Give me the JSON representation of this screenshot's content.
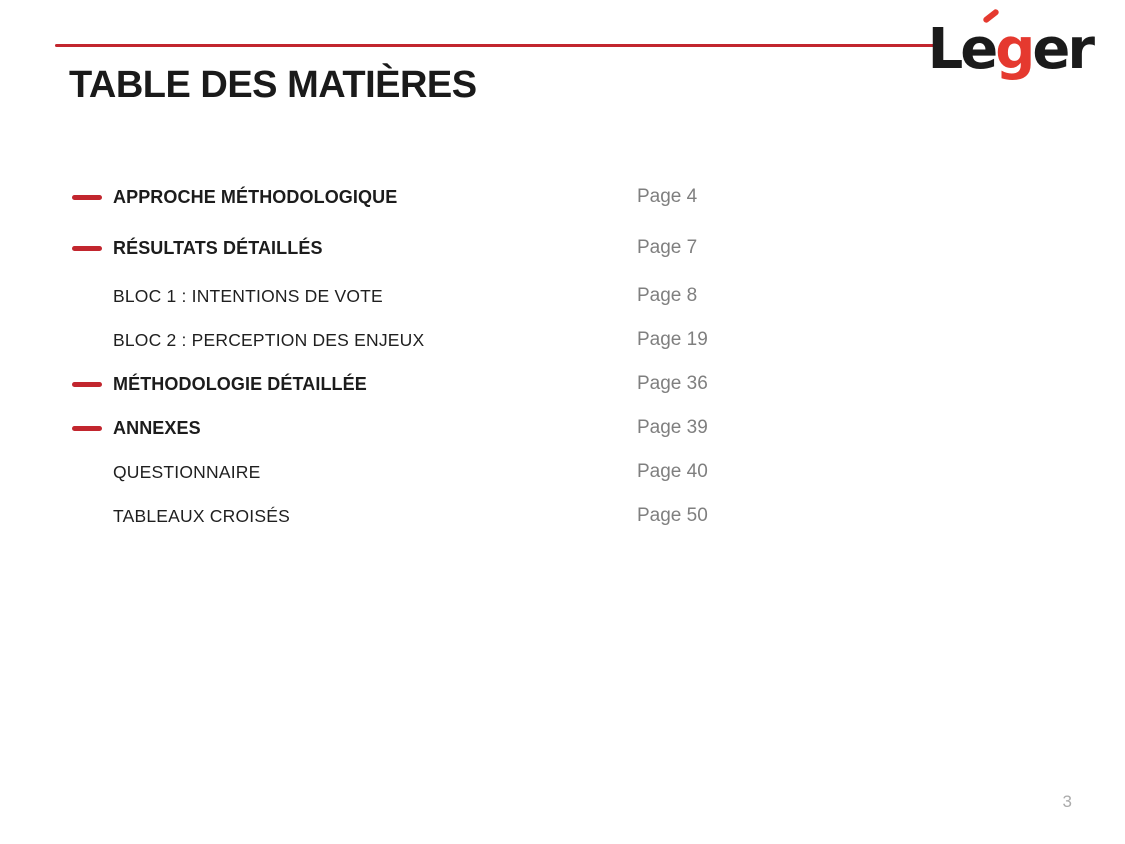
{
  "title": "TABLE DES MATIÈRES",
  "logo": {
    "alt": "Léger",
    "le": "Le",
    "g": "g",
    "er": "er"
  },
  "toc": {
    "items": [
      {
        "label": "APPROCHE MÉTHODOLOGIQUE",
        "page": "Page 4",
        "level": "main"
      },
      {
        "label": "RÉSULTATS DÉTAILLÉS",
        "page": "Page 7",
        "level": "main"
      },
      {
        "label": "BLOC 1 : INTENTIONS DE VOTE",
        "page": "Page 8",
        "level": "sub"
      },
      {
        "label": "BLOC 2 : PERCEPTION DES ENJEUX",
        "page": "Page 19",
        "level": "sub"
      },
      {
        "label": "MÉTHODOLOGIE DÉTAILLÉE",
        "page": "Page 36",
        "level": "main"
      },
      {
        "label": "ANNEXES",
        "page": "Page 39",
        "level": "main"
      },
      {
        "label": "QUESTIONNAIRE",
        "page": "Page 40",
        "level": "sub"
      },
      {
        "label": "TABLEAUX CROISÉS",
        "page": "Page 50",
        "level": "sub"
      }
    ]
  },
  "footer": {
    "page_number": "3"
  },
  "colors": {
    "brand_red": "#C2262E",
    "logo_red": "#E5392F",
    "heading_black": "#1A1A1A",
    "page_gray": "#7F7F7F",
    "footer_gray": "#ABABAB"
  }
}
